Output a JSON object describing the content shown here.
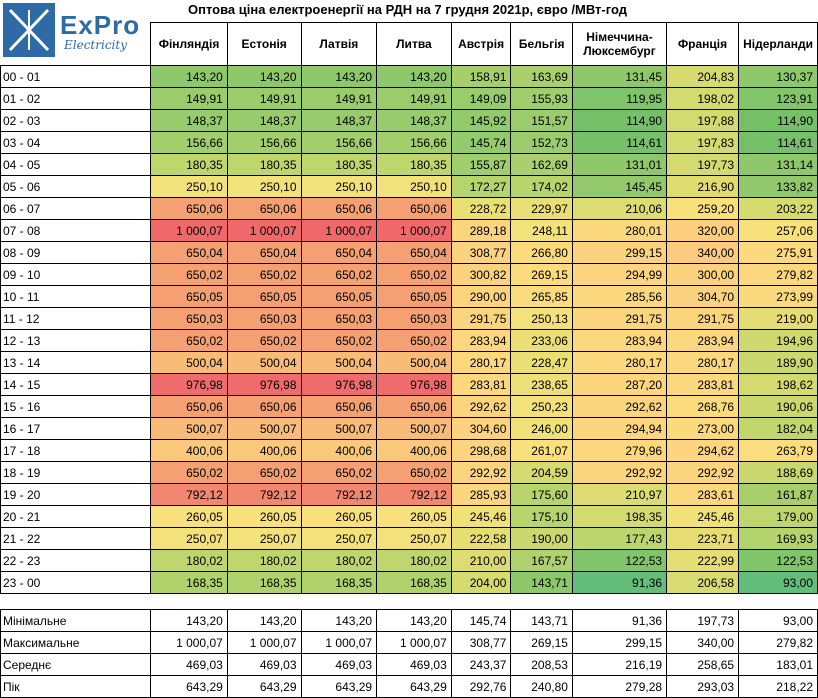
{
  "logo": {
    "text": "ExPro",
    "sub": "Electricity"
  },
  "title": "Оптова ціна електроенергії на РДН на 7 грудня 2021р, євро /МВт-год",
  "columns": [
    "Фінляндія",
    "Естонія",
    "Латвія",
    "Литва",
    "Австрія",
    "Бельгія",
    "Німеччина-Люксембург",
    "Франція",
    "Нідерланди"
  ],
  "rows": [
    {
      "hour": "00 - 01",
      "values": [
        "143,20",
        "143,20",
        "143,20",
        "143,20",
        "158,91",
        "163,69",
        "131,45",
        "204,83",
        "130,37"
      ],
      "colors": [
        "#8dc86b",
        "#8dc86b",
        "#8dc86b",
        "#8dc86b",
        "#a6cf6b",
        "#a9d06b",
        "#8fc86b",
        "#d6db70",
        "#8dc86b"
      ]
    },
    {
      "hour": "01 - 02",
      "values": [
        "149,91",
        "149,91",
        "149,91",
        "149,91",
        "149,09",
        "155,93",
        "119,95",
        "198,02",
        "123,91"
      ],
      "colors": [
        "#9acc6c",
        "#9acc6c",
        "#9acc6c",
        "#9acc6c",
        "#98cc6c",
        "#a0ce6c",
        "#7ec46b",
        "#d2da70",
        "#83c56b"
      ]
    },
    {
      "hour": "02 - 03",
      "values": [
        "148,37",
        "148,37",
        "148,37",
        "148,37",
        "145,92",
        "151,57",
        "114,90",
        "197,88",
        "114,90"
      ],
      "colors": [
        "#97cb6c",
        "#97cb6c",
        "#97cb6c",
        "#97cb6c",
        "#92ca6c",
        "#9bcc6c",
        "#76c06a",
        "#d2da70",
        "#76c06a"
      ]
    },
    {
      "hour": "03 - 04",
      "values": [
        "156,66",
        "156,66",
        "156,66",
        "156,66",
        "145,74",
        "152,73",
        "114,61",
        "197,83",
        "114,61"
      ],
      "colors": [
        "#a2cf6c",
        "#a2cf6c",
        "#a2cf6c",
        "#a2cf6c",
        "#92ca6c",
        "#9ccc6c",
        "#76c06a",
        "#d2da70",
        "#76c06a"
      ]
    },
    {
      "hour": "04 - 05",
      "values": [
        "180,35",
        "180,35",
        "180,35",
        "180,35",
        "155,87",
        "162,69",
        "131,01",
        "197,73",
        "131,14"
      ],
      "colors": [
        "#bfd66e",
        "#bfd66e",
        "#bfd66e",
        "#bfd66e",
        "#a0ce6c",
        "#a9d06c",
        "#8fc86b",
        "#d2da70",
        "#8fc86b"
      ]
    },
    {
      "hour": "05 - 06",
      "values": [
        "250,10",
        "250,10",
        "250,10",
        "250,10",
        "172,27",
        "174,02",
        "145,45",
        "216,90",
        "133,82"
      ],
      "colors": [
        "#f3e27c",
        "#f3e27c",
        "#f3e27c",
        "#f3e27c",
        "#b5d46d",
        "#b7d46d",
        "#93c96c",
        "#e1dc72",
        "#91c86b"
      ]
    },
    {
      "hour": "06 - 07",
      "values": [
        "650,06",
        "650,06",
        "650,06",
        "650,06",
        "228,72",
        "229,97",
        "210,06",
        "259,20",
        "203,22"
      ],
      "colors": [
        "#f4a072",
        "#f4a072",
        "#f4a072",
        "#f4a072",
        "#e9df75",
        "#eadf75",
        "#dcdc72",
        "#f8e17b",
        "#d6db70"
      ]
    },
    {
      "hour": "07 - 08",
      "values": [
        "1 000,07",
        "1 000,07",
        "1 000,07",
        "1 000,07",
        "289,18",
        "248,11",
        "280,01",
        "320,00",
        "257,06"
      ],
      "colors": [
        "#f0686a",
        "#f0686a",
        "#f0686a",
        "#f0686a",
        "#fbd57e",
        "#f2e27b",
        "#fbd87e",
        "#fccf7f",
        "#f6e17b"
      ]
    },
    {
      "hour": "08 - 09",
      "values": [
        "650,04",
        "650,04",
        "650,04",
        "650,04",
        "308,77",
        "266,80",
        "299,15",
        "340,00",
        "275,91"
      ],
      "colors": [
        "#f4a072",
        "#f4a072",
        "#f4a072",
        "#f4a072",
        "#fbd27f",
        "#fadc7d",
        "#fbd37f",
        "#fccb7f",
        "#fbd97e"
      ]
    },
    {
      "hour": "09 - 10",
      "values": [
        "650,02",
        "650,02",
        "650,02",
        "650,02",
        "300,82",
        "269,15",
        "294,99",
        "300,00",
        "279,82"
      ],
      "colors": [
        "#f4a072",
        "#f4a072",
        "#f4a072",
        "#f4a072",
        "#fbd37f",
        "#fadb7d",
        "#fbd57f",
        "#fbd37f",
        "#fbd87e"
      ]
    },
    {
      "hour": "10 - 11",
      "values": [
        "650,05",
        "650,05",
        "650,05",
        "650,05",
        "290,00",
        "265,85",
        "285,56",
        "304,70",
        "273,99"
      ],
      "colors": [
        "#f4a072",
        "#f4a072",
        "#f4a072",
        "#f4a072",
        "#fbd57e",
        "#fadc7d",
        "#fbd77e",
        "#fbd27f",
        "#fbda7e"
      ]
    },
    {
      "hour": "11 - 12",
      "values": [
        "650,03",
        "650,03",
        "650,03",
        "650,03",
        "291,75",
        "250,13",
        "291,75",
        "291,75",
        "219,00"
      ],
      "colors": [
        "#f4a072",
        "#f4a072",
        "#f4a072",
        "#f4a072",
        "#fbd57e",
        "#f3e27c",
        "#fbd57e",
        "#fbd57e",
        "#e3dd73"
      ]
    },
    {
      "hour": "12 - 13",
      "values": [
        "650,02",
        "650,02",
        "650,02",
        "650,02",
        "283,94",
        "233,06",
        "283,94",
        "283,94",
        "194,96"
      ],
      "colors": [
        "#f4a072",
        "#f4a072",
        "#f4a072",
        "#f4a072",
        "#fbd77e",
        "#ebdf75",
        "#fbd77e",
        "#fbd77e",
        "#cfd970"
      ]
    },
    {
      "hour": "13 - 14",
      "values": [
        "500,04",
        "500,04",
        "500,04",
        "500,04",
        "280,17",
        "228,47",
        "280,17",
        "280,17",
        "189,90"
      ],
      "colors": [
        "#f8bb78",
        "#f8bb78",
        "#f8bb78",
        "#f8bb78",
        "#fbd87e",
        "#e9df75",
        "#fbd87e",
        "#fbd87e",
        "#cbd86f"
      ]
    },
    {
      "hour": "14 - 15",
      "values": [
        "976,98",
        "976,98",
        "976,98",
        "976,98",
        "283,81",
        "238,65",
        "287,20",
        "283,81",
        "198,62"
      ],
      "colors": [
        "#f06b6b",
        "#f06b6b",
        "#f06b6b",
        "#f06b6b",
        "#fbd77e",
        "#eee078",
        "#fbd67e",
        "#fbd77e",
        "#d3da70"
      ]
    },
    {
      "hour": "15 - 16",
      "values": [
        "650,06",
        "650,06",
        "650,06",
        "650,06",
        "292,62",
        "250,23",
        "292,62",
        "268,76",
        "190,06"
      ],
      "colors": [
        "#f4a072",
        "#f4a072",
        "#f4a072",
        "#f4a072",
        "#fbd57e",
        "#f3e27c",
        "#fbd57e",
        "#fadc7d",
        "#cbd86f"
      ]
    },
    {
      "hour": "16 - 17",
      "values": [
        "500,07",
        "500,07",
        "500,07",
        "500,07",
        "304,60",
        "246,00",
        "294,94",
        "273,00",
        "182,04"
      ],
      "colors": [
        "#f8bb78",
        "#f8bb78",
        "#f8bb78",
        "#f8bb78",
        "#fbd27f",
        "#f0e179",
        "#fbd57f",
        "#fbda7e",
        "#c2d66e"
      ]
    },
    {
      "hour": "17 - 18",
      "values": [
        "400,06",
        "400,06",
        "400,06",
        "400,06",
        "298,68",
        "261,07",
        "279,96",
        "294,62",
        "263,79"
      ],
      "colors": [
        "#f9c87b",
        "#f9c87b",
        "#f9c87b",
        "#f9c87b",
        "#fbd47f",
        "#f9e07c",
        "#fbd87e",
        "#fbd57f",
        "#fade7d"
      ]
    },
    {
      "hour": "18 - 19",
      "values": [
        "650,02",
        "650,02",
        "650,02",
        "650,02",
        "292,92",
        "204,59",
        "292,92",
        "292,92",
        "188,69"
      ],
      "colors": [
        "#f4a072",
        "#f4a072",
        "#f4a072",
        "#f4a072",
        "#fbd57e",
        "#d6db70",
        "#fbd57e",
        "#fbd57e",
        "#c9d86f"
      ]
    },
    {
      "hour": "19 - 20",
      "values": [
        "792,12",
        "792,12",
        "792,12",
        "792,12",
        "285,93",
        "175,60",
        "210,97",
        "283,61",
        "161,87"
      ],
      "colors": [
        "#f2866e",
        "#f2866e",
        "#f2866e",
        "#f2866e",
        "#fbd67e",
        "#b8d46d",
        "#dcdc72",
        "#fbd77e",
        "#a8cf6c"
      ]
    },
    {
      "hour": "20 - 21",
      "values": [
        "260,05",
        "260,05",
        "260,05",
        "260,05",
        "245,46",
        "175,10",
        "198,35",
        "245,46",
        "179,00"
      ],
      "colors": [
        "#f8e07c",
        "#f8e07c",
        "#f8e07c",
        "#f8e07c",
        "#f0e179",
        "#b8d46d",
        "#d2da70",
        "#f0e179",
        "#bfd66e"
      ]
    },
    {
      "hour": "21 - 22",
      "values": [
        "250,07",
        "250,07",
        "250,07",
        "250,07",
        "222,58",
        "190,00",
        "177,43",
        "223,71",
        "169,93"
      ],
      "colors": [
        "#f3e27c",
        "#f3e27c",
        "#f3e27c",
        "#f3e27c",
        "#e5de74",
        "#cbd86f",
        "#bdd56e",
        "#e6de74",
        "#b2d36d"
      ]
    },
    {
      "hour": "22 - 23",
      "values": [
        "180,02",
        "180,02",
        "180,02",
        "180,02",
        "210,00",
        "167,57",
        "122,53",
        "222,99",
        "122,53"
      ],
      "colors": [
        "#bfd66e",
        "#bfd66e",
        "#bfd66e",
        "#bfd66e",
        "#dcdc72",
        "#afd26d",
        "#81c56b",
        "#e5de74",
        "#81c56b"
      ]
    },
    {
      "hour": "23 - 00",
      "values": [
        "168,35",
        "168,35",
        "168,35",
        "168,35",
        "204,00",
        "143,71",
        "91,36",
        "206,58",
        "93,00"
      ],
      "colors": [
        "#b0d26d",
        "#b0d26d",
        "#b0d26d",
        "#b0d26d",
        "#d6db70",
        "#8dc86b",
        "#63be7b",
        "#d8db71",
        "#63be7b"
      ]
    }
  ],
  "summary": [
    {
      "label": "Мінімальне",
      "values": [
        "143,20",
        "143,20",
        "143,20",
        "143,20",
        "145,74",
        "143,71",
        "91,36",
        "197,73",
        "93,00"
      ]
    },
    {
      "label": "Максимальне",
      "values": [
        "1 000,07",
        "1 000,07",
        "1 000,07",
        "1 000,07",
        "308,77",
        "269,15",
        "299,15",
        "340,00",
        "279,82"
      ]
    },
    {
      "label": "Середнє",
      "values": [
        "469,03",
        "469,03",
        "469,03",
        "469,03",
        "243,37",
        "208,53",
        "216,19",
        "258,65",
        "183,01"
      ]
    },
    {
      "label": "Пік",
      "values": [
        "643,29",
        "643,29",
        "643,29",
        "643,29",
        "292,76",
        "240,80",
        "279,28",
        "293,03",
        "218,22"
      ]
    }
  ]
}
